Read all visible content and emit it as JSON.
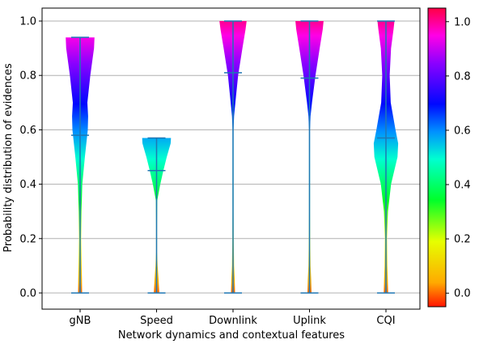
{
  "chart_data": {
    "type": "violin",
    "title": "",
    "xlabel": "Network dynamics and contextual features",
    "ylabel": "Probability distribution of evidences",
    "categories": [
      "gNB",
      "Speed",
      "Downlink",
      "Uplink",
      "CQI"
    ],
    "ylim": [
      -0.04,
      1.045
    ],
    "yticks": [
      "0.0",
      "0.2",
      "0.4",
      "0.6",
      "0.8",
      "1.0"
    ],
    "grid": "horizontal",
    "colormap": "gist_rainbow_r",
    "colorbar": {
      "ticks": [
        "0.0",
        "0.2",
        "0.4",
        "0.6",
        "0.8",
        "1.0"
      ],
      "range": [
        -0.05,
        1.05
      ]
    },
    "series": [
      {
        "category": "gNB",
        "min": 0.0,
        "median": 0.58,
        "max": 0.94,
        "profile": [
          [
            0.0,
            0.12
          ],
          [
            0.05,
            0.11
          ],
          [
            0.1,
            0.09
          ],
          [
            0.2,
            0.06
          ],
          [
            0.3,
            0.08
          ],
          [
            0.4,
            0.13
          ],
          [
            0.5,
            0.28
          ],
          [
            0.6,
            0.45
          ],
          [
            0.65,
            0.47
          ],
          [
            0.7,
            0.43
          ],
          [
            0.8,
            0.6
          ],
          [
            0.9,
            0.82
          ],
          [
            0.94,
            0.85
          ]
        ]
      },
      {
        "category": "Speed",
        "min": 0.0,
        "median": 0.45,
        "max": 0.57,
        "profile": [
          [
            0.0,
            0.16
          ],
          [
            0.05,
            0.12
          ],
          [
            0.1,
            0.06
          ],
          [
            0.15,
            0.02
          ],
          [
            0.25,
            0.02
          ],
          [
            0.34,
            0.04
          ],
          [
            0.4,
            0.22
          ],
          [
            0.45,
            0.4
          ],
          [
            0.5,
            0.6
          ],
          [
            0.55,
            0.83
          ],
          [
            0.57,
            0.85
          ]
        ]
      },
      {
        "category": "Downlink",
        "min": 0.0,
        "median": 0.81,
        "max": 1.0,
        "profile": [
          [
            0.0,
            0.12
          ],
          [
            0.05,
            0.1
          ],
          [
            0.1,
            0.06
          ],
          [
            0.2,
            0.04
          ],
          [
            0.3,
            0.02
          ],
          [
            0.4,
            0.0
          ],
          [
            0.5,
            0.0
          ],
          [
            0.6,
            0.01
          ],
          [
            0.65,
            0.06
          ],
          [
            0.7,
            0.14
          ],
          [
            0.8,
            0.3
          ],
          [
            0.9,
            0.55
          ],
          [
            0.97,
            0.74
          ],
          [
            1.0,
            0.8
          ]
        ]
      },
      {
        "category": "Uplink",
        "min": 0.0,
        "median": 0.79,
        "max": 1.0,
        "profile": [
          [
            0.0,
            0.12
          ],
          [
            0.05,
            0.1
          ],
          [
            0.1,
            0.06
          ],
          [
            0.2,
            0.04
          ],
          [
            0.3,
            0.02
          ],
          [
            0.4,
            0.0
          ],
          [
            0.5,
            0.0
          ],
          [
            0.6,
            0.02
          ],
          [
            0.65,
            0.06
          ],
          [
            0.7,
            0.15
          ],
          [
            0.8,
            0.35
          ],
          [
            0.9,
            0.6
          ],
          [
            0.97,
            0.78
          ],
          [
            1.0,
            0.83
          ]
        ]
      },
      {
        "category": "CQI",
        "min": 0.0,
        "median": 0.57,
        "max": 1.0,
        "profile": [
          [
            0.0,
            0.13
          ],
          [
            0.05,
            0.11
          ],
          [
            0.1,
            0.08
          ],
          [
            0.2,
            0.06
          ],
          [
            0.3,
            0.12
          ],
          [
            0.4,
            0.3
          ],
          [
            0.5,
            0.68
          ],
          [
            0.55,
            0.72
          ],
          [
            0.6,
            0.56
          ],
          [
            0.7,
            0.28
          ],
          [
            0.8,
            0.22
          ],
          [
            0.9,
            0.3
          ],
          [
            0.97,
            0.45
          ],
          [
            1.0,
            0.5
          ]
        ]
      }
    ]
  },
  "colors": {
    "stat_line": "#1f77b4",
    "grid": "#b0b0b0",
    "axis": "#000000"
  }
}
